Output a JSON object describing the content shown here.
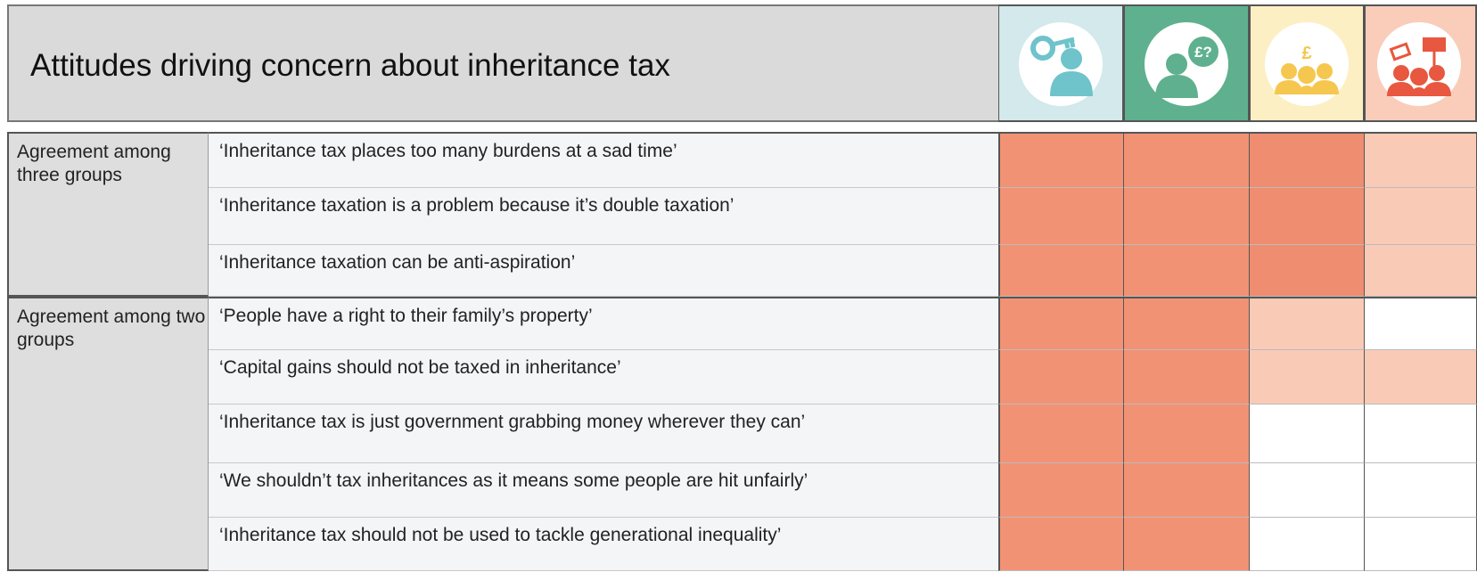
{
  "header": {
    "title": "Attitudes driving concern about inheritance tax",
    "column_colors": [
      "#d3e9eb",
      "#5fb08e",
      "#fdefc4",
      "#f9cdba"
    ]
  },
  "groups": [
    {
      "label": "Agreement among three groups",
      "rows": [
        {
          "statement": "‘Inheritance tax places too many burdens at a sad time’",
          "cells": [
            "#f29275",
            "#f29275",
            "#ef8d70",
            "#f9cab6"
          ]
        },
        {
          "statement": "‘Inheritance taxation is a problem because it’s double taxation’",
          "cells": [
            "#f29275",
            "#f29275",
            "#ef8d70",
            "#f9cab6"
          ]
        },
        {
          "statement": "‘Inheritance taxation can be anti-aspiration’",
          "cells": [
            "#f29275",
            "#f29275",
            "#ef8d70",
            "#f9cab6"
          ]
        }
      ]
    },
    {
      "label": "Agreement among two groups",
      "rows": [
        {
          "statement": "‘People have a right to their family’s property’",
          "cells": [
            "#f29275",
            "#f29275",
            "#f9cab6",
            "#ffffff"
          ]
        },
        {
          "statement": "‘Capital gains should not be taxed in inheritance’",
          "cells": [
            "#f29275",
            "#f29275",
            "#f9cab6",
            "#f9cab6"
          ]
        },
        {
          "statement": "‘Inheritance tax is just government grabbing money wherever they can’",
          "cells": [
            "#f29275",
            "#f29275",
            "#ffffff",
            "#ffffff"
          ]
        },
        {
          "statement": "‘We shouldn’t tax inheritances as it means some people are hit unfairly’",
          "cells": [
            "#f29275",
            "#f29275",
            "#ffffff",
            "#ffffff"
          ]
        },
        {
          "statement": "‘Inheritance tax should not be used to tackle generational inequality’",
          "cells": [
            "#f29275",
            "#f29275",
            "#ffffff",
            "#ffffff"
          ]
        }
      ]
    }
  ]
}
